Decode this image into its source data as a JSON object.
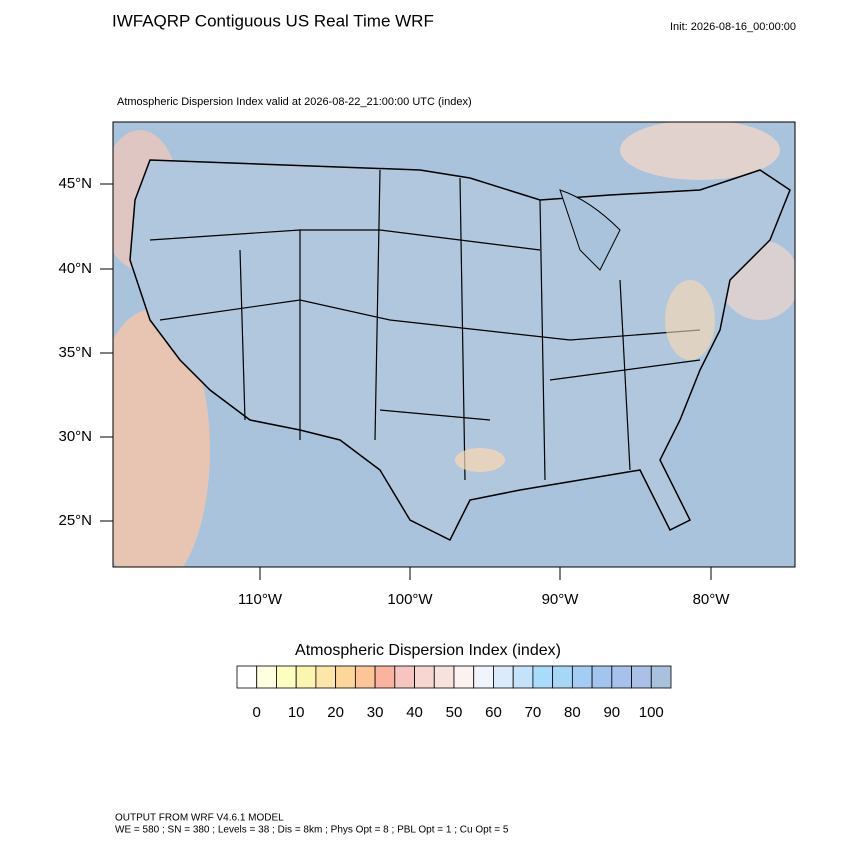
{
  "header": {
    "title": "IWFAQRP Contiguous US Real Time WRF",
    "init": "Init: 2026-08-16_00:00:00"
  },
  "map": {
    "subtitle": "Atmospheric Dispersion Index valid at 2026-08-22_21:00:00 UTC   (index)",
    "lat_labels": [
      "45°N",
      "40°N",
      "35°N",
      "30°N",
      "25°N"
    ],
    "lon_labels": [
      "110°W",
      "100°W",
      "90°W",
      "80°W"
    ]
  },
  "colorbar": {
    "title": "Atmospheric Dispersion Index  (index)",
    "labels": [
      0,
      10,
      20,
      30,
      40,
      50,
      60,
      70,
      80,
      90,
      100
    ],
    "colors": [
      "#ffffff",
      "#fefee0",
      "#fdfdc0",
      "#fbf5b0",
      "#fde7a8",
      "#fdd69a",
      "#fcc596",
      "#f9b39e",
      "#f5c6c0",
      "#f5d6d0",
      "#f8e2dc",
      "#fcf2f0",
      "#f0f4fc",
      "#dcebfb",
      "#c4e2fa",
      "#a8dcfa",
      "#a6d8f6",
      "#a4cdf4",
      "#a4c4f0",
      "#a8c0ec",
      "#aac0e6",
      "#a8c1dc"
    ]
  },
  "footer": {
    "line1": "OUTPUT FROM WRF V4.6.1 MODEL",
    "line2": "WE = 580 ; SN = 380 ; Levels = 38 ; Dis = 8km ; Phys Opt = 8 ; PBL Opt = 1 ; Cu Opt = 5"
  }
}
